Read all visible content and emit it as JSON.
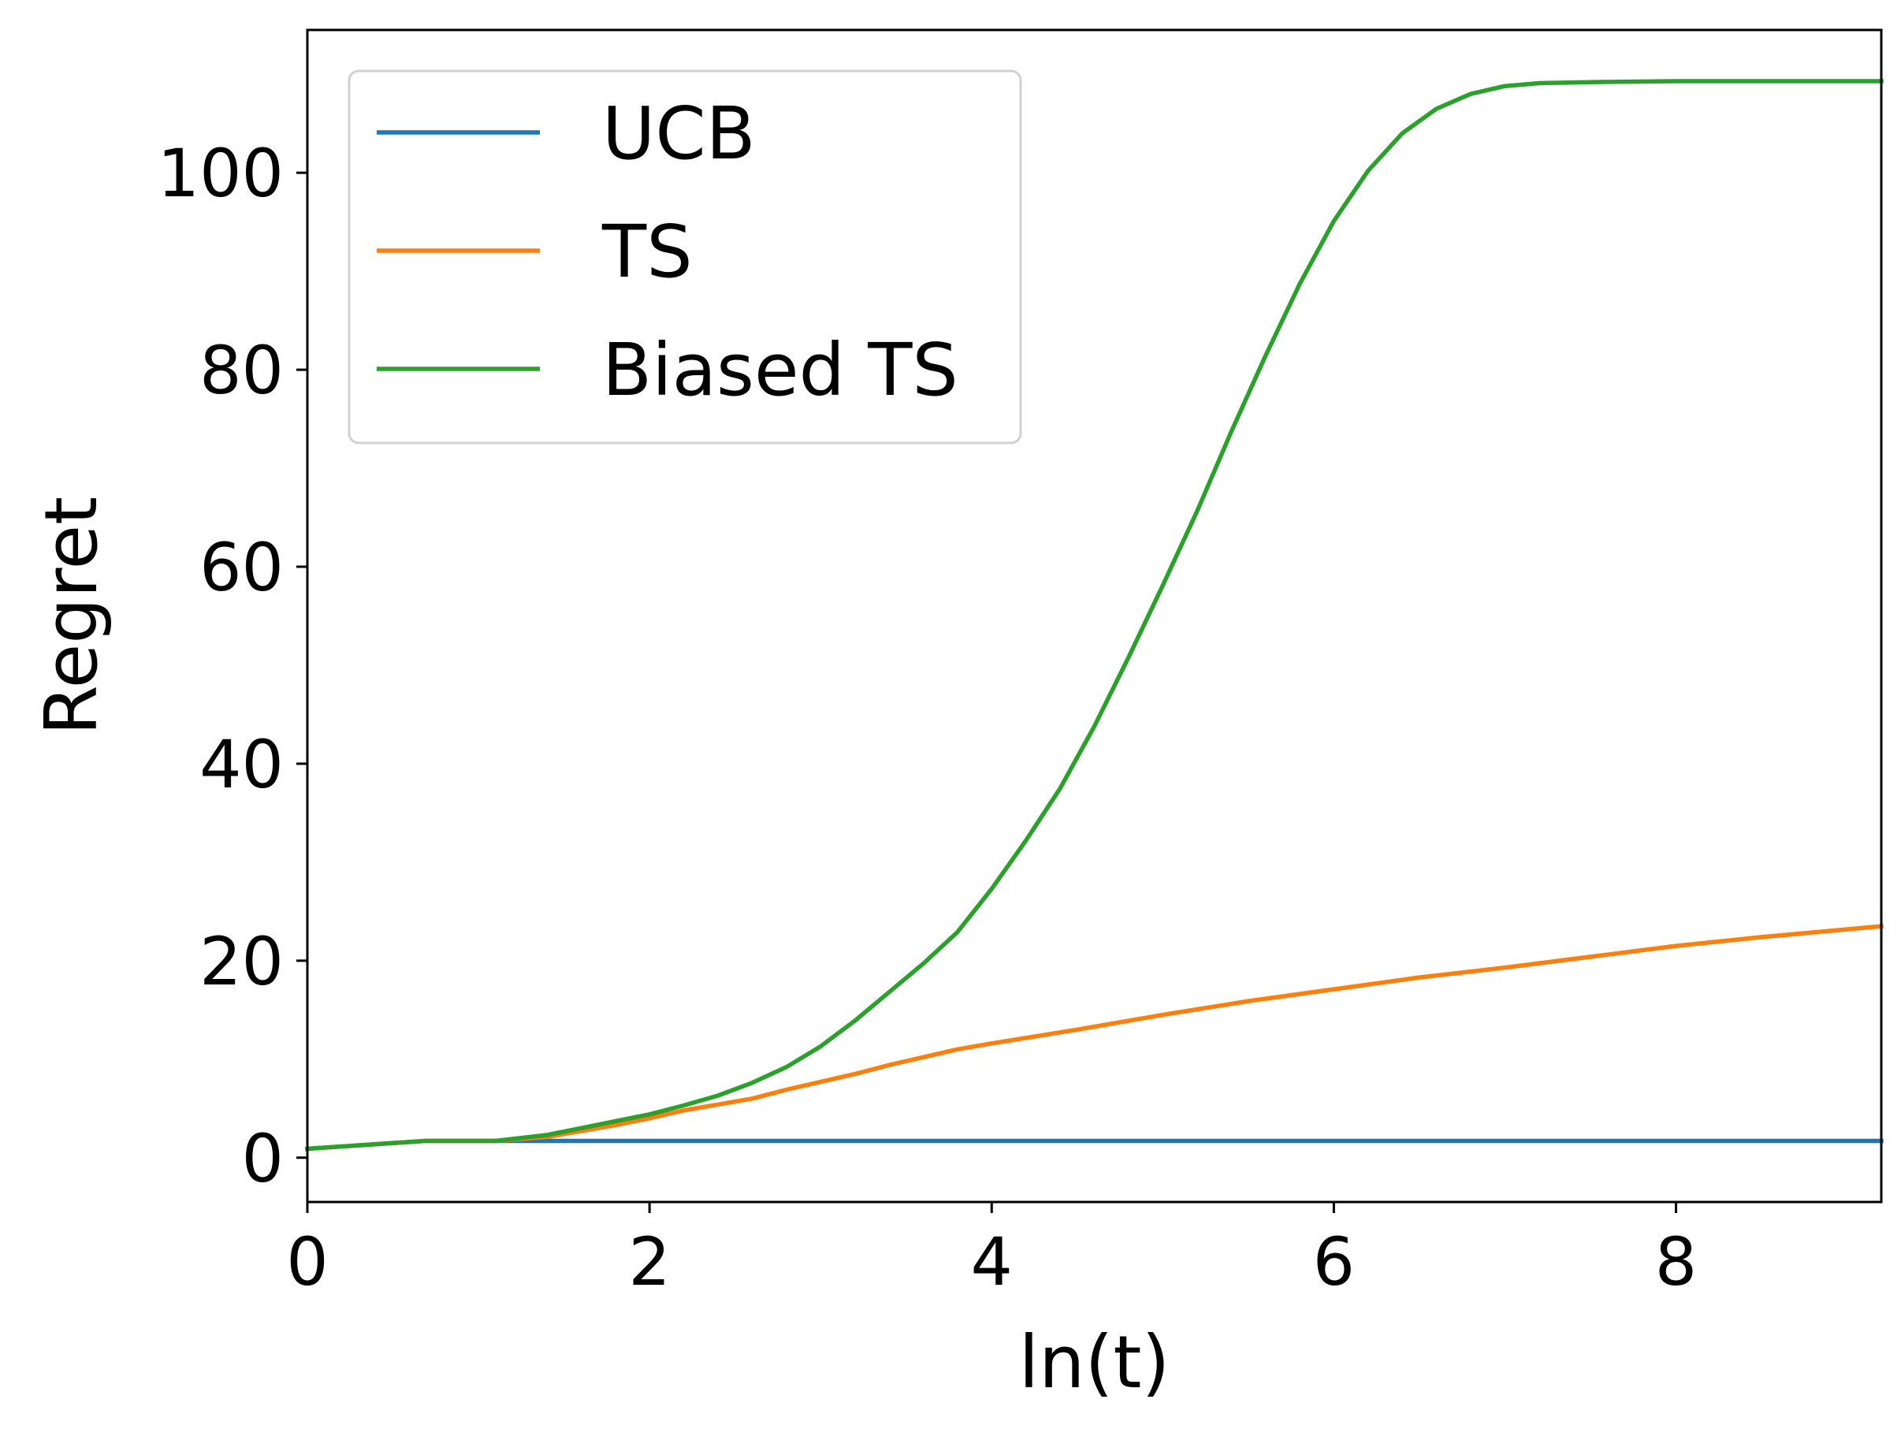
{
  "chart_data": {
    "type": "line",
    "title": "",
    "xlabel": "ln(t)",
    "ylabel": "Regret",
    "xlim": [
      0,
      9.2
    ],
    "ylim": [
      -4.5,
      114.5
    ],
    "xticks": [
      0,
      2,
      4,
      6,
      8
    ],
    "yticks": [
      0,
      20,
      40,
      60,
      80,
      100
    ],
    "xtick_labels": [
      "0",
      "2",
      "4",
      "6",
      "8"
    ],
    "ytick_labels": [
      "0",
      "20",
      "40",
      "60",
      "80",
      "100"
    ],
    "grid": false,
    "legend_position": "top-left",
    "series": [
      {
        "name": "UCB",
        "color": "#1f77b4",
        "x": [
          0,
          0.69,
          1.1,
          2.0,
          4.0,
          6.0,
          8.0,
          9.2
        ],
        "y": [
          0.9,
          1.7,
          1.7,
          1.7,
          1.7,
          1.7,
          1.7,
          1.7
        ]
      },
      {
        "name": "TS",
        "color": "#ff7f0e",
        "x": [
          0,
          0.69,
          1.1,
          1.4,
          1.6,
          1.8,
          2.0,
          2.2,
          2.4,
          2.6,
          2.8,
          3.0,
          3.2,
          3.4,
          3.6,
          3.8,
          4.0,
          4.5,
          5.0,
          5.5,
          6.0,
          6.5,
          7.0,
          7.5,
          8.0,
          8.5,
          9.2
        ],
        "y": [
          0.9,
          1.7,
          1.7,
          2.1,
          2.7,
          3.3,
          4.0,
          4.8,
          5.4,
          6.0,
          6.9,
          7.7,
          8.5,
          9.4,
          10.2,
          11.0,
          11.6,
          13.0,
          14.5,
          15.9,
          17.1,
          18.3,
          19.3,
          20.4,
          21.5,
          22.4,
          23.5
        ]
      },
      {
        "name": "Biased TS",
        "color": "#2ca02c",
        "x": [
          0,
          0.69,
          1.1,
          1.4,
          1.6,
          1.8,
          2.0,
          2.2,
          2.4,
          2.6,
          2.8,
          3.0,
          3.2,
          3.4,
          3.6,
          3.8,
          4.0,
          4.2,
          4.4,
          4.6,
          4.8,
          5.0,
          5.2,
          5.4,
          5.6,
          5.8,
          6.0,
          6.2,
          6.4,
          6.6,
          6.8,
          7.0,
          7.2,
          7.5,
          8.0,
          8.5,
          9.2
        ],
        "y": [
          0.9,
          1.7,
          1.7,
          2.3,
          3.0,
          3.7,
          4.4,
          5.3,
          6.3,
          7.6,
          9.2,
          11.3,
          13.9,
          16.8,
          19.7,
          22.9,
          27.3,
          32.2,
          37.5,
          43.8,
          50.8,
          58.1,
          65.6,
          73.7,
          81.4,
          88.7,
          95.1,
          100.2,
          104.0,
          106.5,
          108.0,
          108.8,
          109.1,
          109.2,
          109.3,
          109.3,
          109.3
        ]
      }
    ]
  }
}
